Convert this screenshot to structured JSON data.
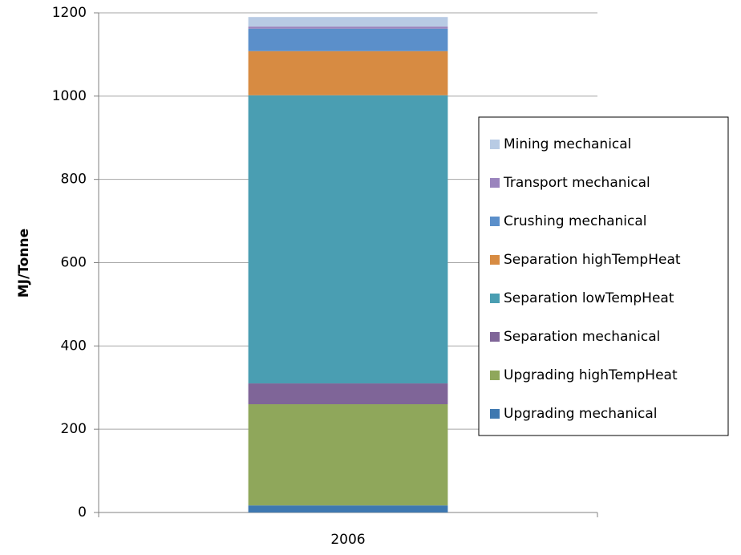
{
  "chart_data": {
    "type": "stacked-bar",
    "y_label": "MJ/Tonne",
    "categories": [
      "2006"
    ],
    "series": [
      {
        "name": "Upgrading mechanical",
        "color": "#3e78b0",
        "values": [
          17
        ]
      },
      {
        "name": "Upgrading highTempHeat",
        "color": "#8fa75b",
        "values": [
          243
        ]
      },
      {
        "name": "Separation mechanical",
        "color": "#7f6598",
        "values": [
          50
        ]
      },
      {
        "name": "Separation lowTempHeat",
        "color": "#4a9eb2",
        "values": [
          692
        ]
      },
      {
        "name": "Separation highTempHeat",
        "color": "#d78b42",
        "values": [
          106
        ]
      },
      {
        "name": "Crushing mechanical",
        "color": "#5b8fca",
        "values": [
          54
        ]
      },
      {
        "name": "Transport mechanical",
        "color": "#9a84bd",
        "values": [
          5
        ]
      },
      {
        "name": "Mining mechanical",
        "color": "#b8cbe4",
        "values": [
          23
        ]
      }
    ],
    "ylim": [
      0,
      1200
    ],
    "yticks": [
      0,
      200,
      400,
      600,
      800,
      1000,
      1200
    ],
    "grid": true,
    "legend": "right"
  }
}
